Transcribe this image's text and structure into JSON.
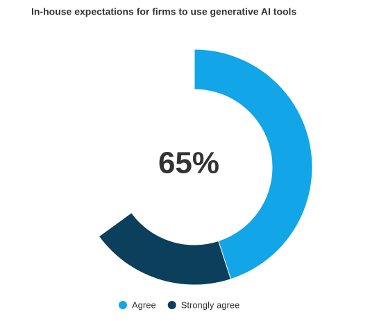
{
  "chart_data": {
    "type": "donut",
    "title": "In-house expectations for firms to use generative AI tools",
    "center_label": "65%",
    "categories": [
      "Agree",
      "Strongly agree"
    ],
    "values": [
      45,
      20
    ],
    "colors": [
      "#12a5e8",
      "#0b3f5b"
    ],
    "ylim": [
      0,
      100
    ]
  }
}
